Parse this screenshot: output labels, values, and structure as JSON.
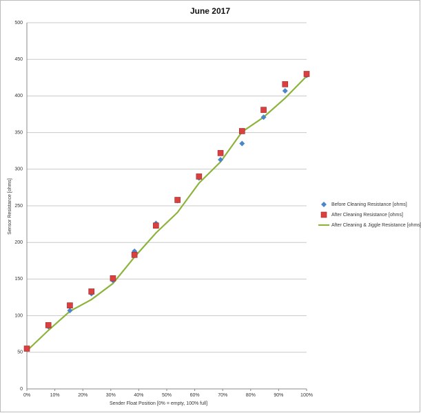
{
  "chart_data": {
    "type": "scatter-line",
    "title": "June 2017",
    "x_label": "Sender Float Position [0% = empty, 100% full]",
    "y_label": "Sensor Resistance [ohms]",
    "x": [
      0,
      7.69,
      15.38,
      23.08,
      30.77,
      38.46,
      46.15,
      53.85,
      61.54,
      69.23,
      76.92,
      84.62,
      92.31,
      100
    ],
    "series": [
      {
        "name": "Before Cleaning Resistance [ohms]",
        "color": "#4a86c8",
        "marker": "diamond",
        "values": [
          55,
          85,
          107,
          130,
          148,
          188,
          226,
          257,
          288,
          313,
          335,
          371,
          407,
          428
        ]
      },
      {
        "name": "After Cleaning Resistance [ohms]",
        "color": "#d94040",
        "marker": "square",
        "values": [
          55,
          87,
          114,
          133,
          151,
          183,
          223,
          258,
          290,
          322,
          352,
          381,
          416,
          430
        ]
      },
      {
        "name": "After Cleaning & Jiggle Resistance [ohms]",
        "color": "#8cb43c",
        "marker": "line",
        "values": [
          52,
          80,
          106,
          122,
          144,
          180,
          213,
          241,
          281,
          310,
          351,
          371,
          397,
          427
        ]
      }
    ],
    "xlim": [
      0,
      100
    ],
    "xticks": [
      {
        "value": 0,
        "label": "0%"
      },
      {
        "value": 10,
        "label": "10%"
      },
      {
        "value": 20,
        "label": "20%"
      },
      {
        "value": 30,
        "label": "30%"
      },
      {
        "value": 40,
        "label": "40%"
      },
      {
        "value": 50,
        "label": "50%"
      },
      {
        "value": 60,
        "label": "60%"
      },
      {
        "value": 70,
        "label": "70%"
      },
      {
        "value": 80,
        "label": "80%"
      },
      {
        "value": 90,
        "label": "90%"
      },
      {
        "value": 100,
        "label": "100%"
      }
    ],
    "ylim": [
      0,
      500
    ],
    "yticks": [
      0,
      50,
      100,
      150,
      200,
      250,
      300,
      350,
      400,
      450,
      500
    ],
    "grid": true,
    "legend": "right"
  }
}
